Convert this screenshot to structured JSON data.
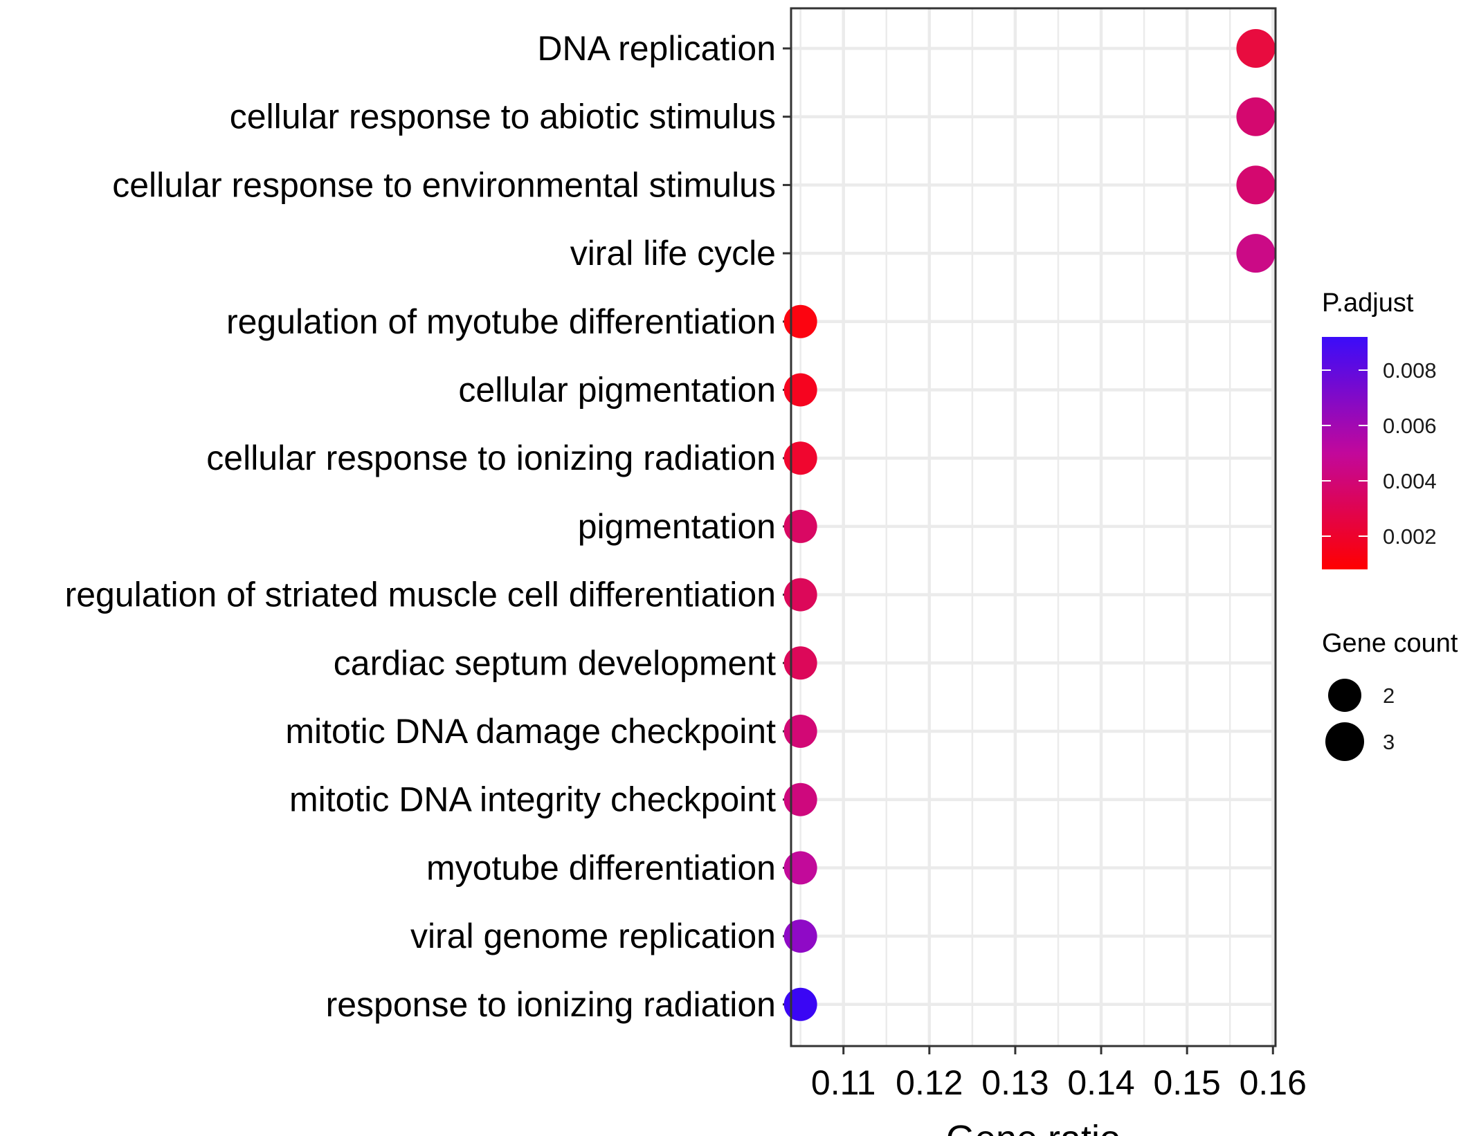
{
  "chart_data": {
    "type": "scatter",
    "title": "",
    "xlabel": "Gene ratio",
    "ylabel": "",
    "xlim": [
      0.1039,
      0.1603
    ],
    "xticks": [
      0.11,
      0.12,
      0.13,
      0.14,
      0.15,
      0.16
    ],
    "xtick_labels": [
      "0.11",
      "0.12",
      "0.13",
      "0.14",
      "0.15",
      "0.16"
    ],
    "grid": true,
    "categories": [
      "DNA replication",
      "cellular response to abiotic stimulus",
      "cellular response to environmental stimulus",
      "viral life cycle",
      "regulation of myotube differentiation",
      "cellular pigmentation",
      "cellular response to ionizing radiation",
      "pigmentation",
      "regulation of striated muscle cell differentiation",
      "cardiac septum development",
      "mitotic DNA damage checkpoint",
      "mitotic DNA integrity checkpoint",
      "myotube differentiation",
      "viral genome replication",
      "response to ionizing radiation"
    ],
    "points": [
      {
        "term": "DNA replication",
        "gene_ratio": 0.158,
        "gene_count": 3,
        "p_adjust": 0.0025,
        "color": "#e80c3f"
      },
      {
        "term": "cellular response to abiotic stimulus",
        "gene_ratio": 0.158,
        "gene_count": 3,
        "p_adjust": 0.0042,
        "color": "#d4086f"
      },
      {
        "term": "cellular response to environmental stimulus",
        "gene_ratio": 0.158,
        "gene_count": 3,
        "p_adjust": 0.0042,
        "color": "#d4086f"
      },
      {
        "term": "viral life cycle",
        "gene_ratio": 0.158,
        "gene_count": 3,
        "p_adjust": 0.0047,
        "color": "#cb0a86"
      },
      {
        "term": "regulation of myotube differentiation",
        "gene_ratio": 0.105,
        "gene_count": 2,
        "p_adjust": 0.0008,
        "color": "#fc0410"
      },
      {
        "term": "cellular pigmentation",
        "gene_ratio": 0.105,
        "gene_count": 2,
        "p_adjust": 0.0012,
        "color": "#f6041f"
      },
      {
        "term": "cellular response to ionizing radiation",
        "gene_ratio": 0.105,
        "gene_count": 2,
        "p_adjust": 0.0016,
        "color": "#f0062f"
      },
      {
        "term": "pigmentation",
        "gene_ratio": 0.105,
        "gene_count": 2,
        "p_adjust": 0.0037,
        "color": "#d90863"
      },
      {
        "term": "regulation of striated muscle cell differentiation",
        "gene_ratio": 0.105,
        "gene_count": 2,
        "p_adjust": 0.0035,
        "color": "#dc0859"
      },
      {
        "term": "cardiac septum development",
        "gene_ratio": 0.105,
        "gene_count": 2,
        "p_adjust": 0.0035,
        "color": "#dc0859"
      },
      {
        "term": "mitotic DNA damage checkpoint",
        "gene_ratio": 0.105,
        "gene_count": 2,
        "p_adjust": 0.0043,
        "color": "#d20875"
      },
      {
        "term": "mitotic DNA integrity checkpoint",
        "gene_ratio": 0.105,
        "gene_count": 2,
        "p_adjust": 0.0045,
        "color": "#ce087d"
      },
      {
        "term": "myotube differentiation",
        "gene_ratio": 0.105,
        "gene_count": 2,
        "p_adjust": 0.0051,
        "color": "#c20a9a"
      },
      {
        "term": "viral genome replication",
        "gene_ratio": 0.105,
        "gene_count": 2,
        "p_adjust": 0.0072,
        "color": "#8f0ac6"
      },
      {
        "term": "response to ionizing radiation",
        "gene_ratio": 0.105,
        "gene_count": 2,
        "p_adjust": 0.0092,
        "color": "#3a06f4"
      }
    ],
    "legend": {
      "placement": "right",
      "color_title": "P.adjust",
      "color_scale": {
        "low_value": 0.0008,
        "high_value": 0.0092,
        "low_color": "#ff0000",
        "mid_color": "#c2089b",
        "high_color": "#3b0cf9",
        "ticks": [
          0.002,
          0.004,
          0.006,
          0.008
        ],
        "tick_labels": [
          "0.002",
          "0.004",
          "0.006",
          "0.008"
        ]
      },
      "size_title": "Gene count",
      "size_entries": [
        {
          "label": "2",
          "count": 2
        },
        {
          "label": "3",
          "count": 3
        }
      ]
    }
  }
}
